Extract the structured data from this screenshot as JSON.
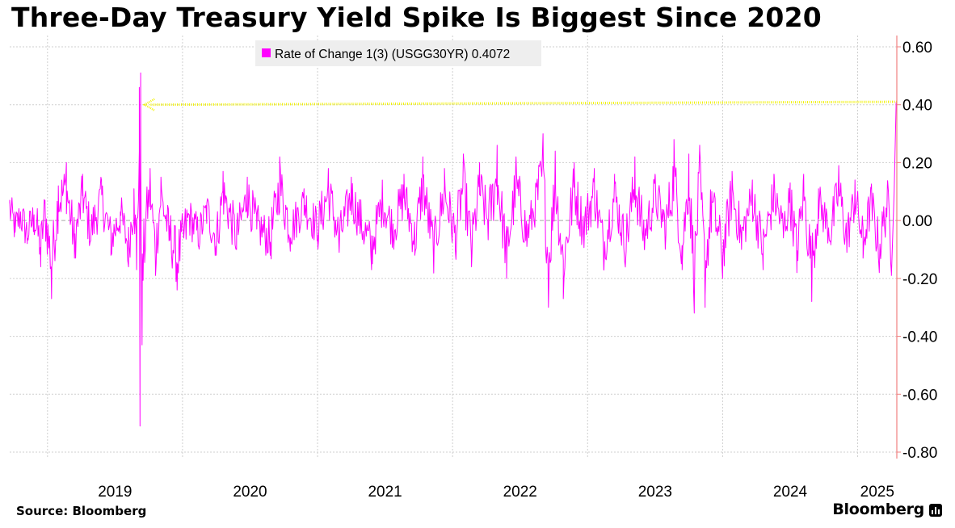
{
  "title": "Three-Day Treasury Yield Spike Is Biggest Since 2020",
  "source": "Source: Bloomberg",
  "brand": "Bloomberg",
  "colors": {
    "series": "#ff00ff",
    "axis": "#f08080",
    "annotation_arrow": "#f2f20a",
    "grid": "#cfcfcf",
    "legend_bg": "#eeeeee"
  },
  "chart_data": {
    "type": "line",
    "title": "Three-Day Treasury Yield Spike Is Biggest Since 2020",
    "xlabel": "",
    "ylabel": "",
    "ylim": [
      -0.8,
      0.6
    ],
    "xlim": [
      2018.72,
      2025.29
    ],
    "grid": true,
    "legend_position": "top-left",
    "y_ticks": [
      0.6,
      0.4,
      0.2,
      0.0,
      -0.2,
      -0.4,
      -0.6,
      -0.8
    ],
    "y_tick_labels": [
      "0.60",
      "0.40",
      "0.20",
      "0.00",
      "-0.20",
      "-0.40",
      "-0.60",
      "-0.80"
    ],
    "x_ticks": [
      2019,
      2020,
      2021,
      2022,
      2023,
      2024,
      2025
    ],
    "x_tick_labels": [
      "2019",
      "2020",
      "2021",
      "2022",
      "2023",
      "2024",
      "2025"
    ],
    "series": [
      {
        "name": "Rate of Change 1(3) (USGG30YR)",
        "legend_label": "Rate of Change 1(3) (USGG30YR) 0.4072",
        "last_value": 0.4072,
        "anchors": [
          [
            2018.72,
            0.07
          ],
          [
            2018.76,
            -0.04
          ],
          [
            2018.8,
            0.03
          ],
          [
            2018.85,
            -0.08
          ],
          [
            2018.9,
            0.02
          ],
          [
            2018.95,
            -0.16
          ],
          [
            2018.98,
            0.06
          ],
          [
            2019.03,
            -0.27
          ],
          [
            2019.08,
            0.12
          ],
          [
            2019.14,
            0.2
          ],
          [
            2019.2,
            -0.13
          ],
          [
            2019.26,
            0.16
          ],
          [
            2019.32,
            -0.07
          ],
          [
            2019.4,
            0.14
          ],
          [
            2019.47,
            -0.12
          ],
          [
            2019.54,
            0.03
          ],
          [
            2019.6,
            -0.16
          ],
          [
            2019.64,
            0.11
          ],
          [
            2019.66,
            -0.17
          ],
          [
            2019.68,
            0.46
          ],
          [
            2019.685,
            -0.71
          ],
          [
            2019.69,
            0.51
          ],
          [
            2019.7,
            -0.43
          ],
          [
            2019.73,
            0.03
          ],
          [
            2019.76,
            0.18
          ],
          [
            2019.8,
            -0.19
          ],
          [
            2019.84,
            0.15
          ],
          [
            2019.9,
            -0.07
          ],
          [
            2019.96,
            -0.24
          ],
          [
            2020.05,
            0.02
          ],
          [
            2020.12,
            -0.09
          ],
          [
            2020.18,
            0.06
          ],
          [
            2020.25,
            -0.12
          ],
          [
            2020.3,
            0.17
          ],
          [
            2020.4,
            -0.1
          ],
          [
            2020.48,
            0.15
          ],
          [
            2020.55,
            -0.03
          ],
          [
            2020.65,
            -0.12
          ],
          [
            2020.72,
            0.22
          ],
          [
            2020.8,
            -0.06
          ],
          [
            2020.9,
            0.11
          ],
          [
            2021.0,
            -0.05
          ],
          [
            2021.08,
            0.18
          ],
          [
            2021.16,
            -0.11
          ],
          [
            2021.25,
            0.15
          ],
          [
            2021.32,
            -0.01
          ],
          [
            2021.4,
            -0.17
          ],
          [
            2021.48,
            0.12
          ],
          [
            2021.56,
            -0.05
          ],
          [
            2021.64,
            0.16
          ],
          [
            2021.72,
            -0.12
          ],
          [
            2021.78,
            0.22
          ],
          [
            2021.86,
            -0.18
          ],
          [
            2021.94,
            0.18
          ],
          [
            2022.02,
            -0.1
          ],
          [
            2022.08,
            0.23
          ],
          [
            2022.14,
            -0.16
          ],
          [
            2022.2,
            0.2
          ],
          [
            2022.26,
            0.0
          ],
          [
            2022.33,
            0.26
          ],
          [
            2022.4,
            -0.2
          ],
          [
            2022.47,
            0.22
          ],
          [
            2022.55,
            -0.09
          ],
          [
            2022.62,
            0.12
          ],
          [
            2022.67,
            0.3
          ],
          [
            2022.71,
            -0.3
          ],
          [
            2022.76,
            0.24
          ],
          [
            2022.82,
            -0.27
          ],
          [
            2022.9,
            0.2
          ],
          [
            2022.97,
            -0.04
          ],
          [
            2023.05,
            0.18
          ],
          [
            2023.12,
            -0.17
          ],
          [
            2023.2,
            0.16
          ],
          [
            2023.28,
            -0.15
          ],
          [
            2023.35,
            0.22
          ],
          [
            2023.42,
            -0.1
          ],
          [
            2023.5,
            0.16
          ],
          [
            2023.58,
            -0.05
          ],
          [
            2023.64,
            0.28
          ],
          [
            2023.7,
            -0.17
          ],
          [
            2023.75,
            0.23
          ],
          [
            2023.79,
            -0.32
          ],
          [
            2023.83,
            0.26
          ],
          [
            2023.87,
            -0.3
          ],
          [
            2023.92,
            0.1
          ],
          [
            2024.0,
            -0.2
          ],
          [
            2024.07,
            0.17
          ],
          [
            2024.14,
            -0.1
          ],
          [
            2024.22,
            0.14
          ],
          [
            2024.3,
            -0.17
          ],
          [
            2024.38,
            0.16
          ],
          [
            2024.45,
            -0.06
          ],
          [
            2024.5,
            0.13
          ],
          [
            2024.55,
            -0.18
          ],
          [
            2024.6,
            0.16
          ],
          [
            2024.66,
            -0.28
          ],
          [
            2024.71,
            0.11
          ],
          [
            2024.8,
            -0.07
          ],
          [
            2024.86,
            0.19
          ],
          [
            2024.92,
            -0.11
          ],
          [
            2024.98,
            0.14
          ],
          [
            2025.04,
            -0.13
          ],
          [
            2025.1,
            0.11
          ],
          [
            2025.16,
            -0.18
          ],
          [
            2025.22,
            0.12
          ],
          [
            2025.25,
            -0.19
          ],
          [
            2025.27,
            0.1
          ],
          [
            2025.285,
            0.41
          ]
        ]
      }
    ],
    "annotations": [
      {
        "type": "arrow",
        "from": [
          2025.29,
          0.41
        ],
        "to": [
          2019.72,
          0.4
        ],
        "color": "#f2f20a"
      }
    ]
  }
}
